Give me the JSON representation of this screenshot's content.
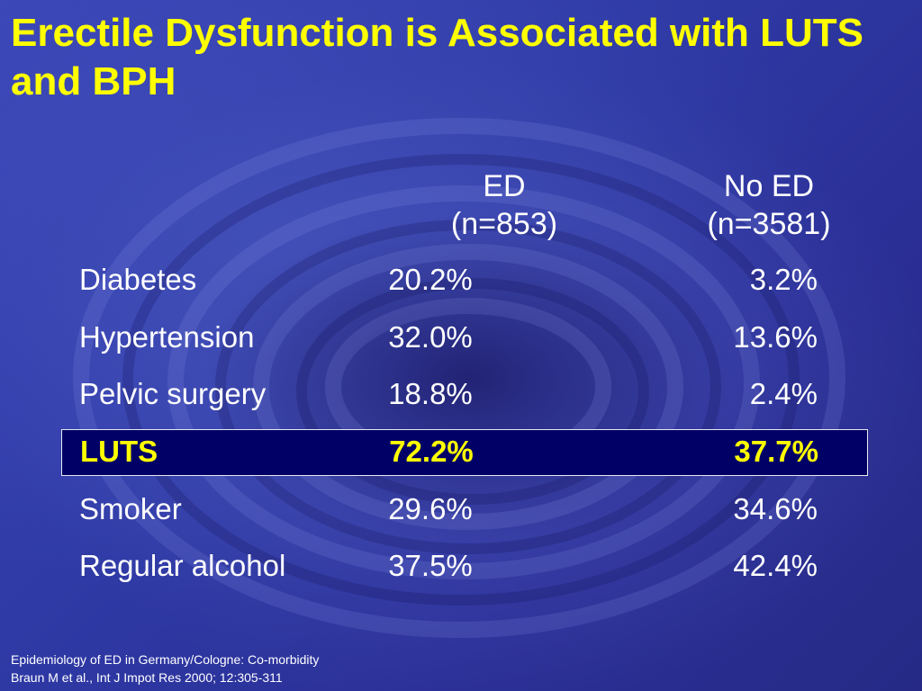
{
  "slide": {
    "title": "Erectile Dysfunction is Associated  with LUTS and BPH",
    "columns": [
      {
        "name": "ED",
        "n": "(n=853)"
      },
      {
        "name": "No ED",
        "n": "(n=3581)"
      }
    ],
    "rows": [
      {
        "label": "Diabetes",
        "ed": "20.2%",
        "no_ed": "3.2%"
      },
      {
        "label": "Hypertension",
        "ed": "32.0%",
        "no_ed": "13.6%"
      },
      {
        "label": "Pelvic surgery",
        "ed": "18.8%",
        "no_ed": "2.4%"
      },
      {
        "label": "LUTS",
        "ed": "72.2%",
        "no_ed": "37.7%"
      },
      {
        "label": "Smoker",
        "ed": "29.6%",
        "no_ed": "34.6%"
      },
      {
        "label": "Regular alcohol",
        "ed": "37.5%",
        "no_ed": "42.4%"
      }
    ],
    "highlighted_row": "LUTS",
    "footer": [
      "Epidemiology  of  ED  in Germany/Cologne:  Co-morbidity",
      "Braun M et al., Int J Impot Res 2000; 12:305-311"
    ],
    "colors": {
      "title": "#ffff00",
      "text": "#ffffff",
      "highlight_bg": "#000066",
      "highlight_text": "#ffff00",
      "background": "#2f3aa6"
    }
  }
}
